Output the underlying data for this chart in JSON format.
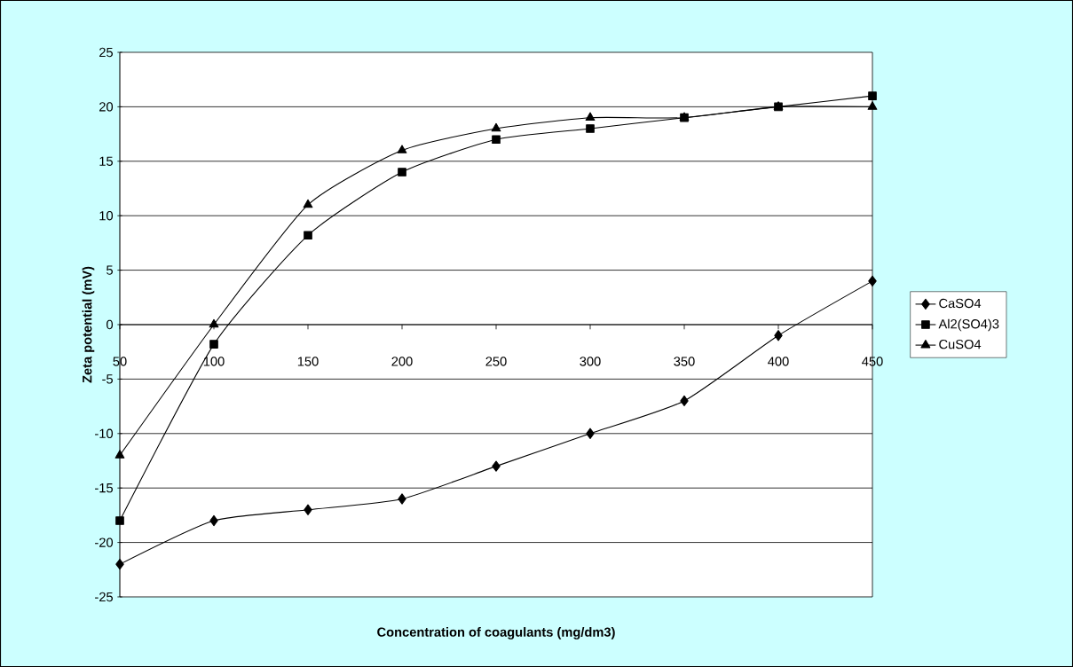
{
  "chart_data": {
    "type": "line",
    "xlabel": "Concentration of coagulants (mg/dm3)",
    "ylabel": "Zeta potential (mV)",
    "x": [
      50,
      100,
      150,
      200,
      250,
      300,
      350,
      400,
      450
    ],
    "series": [
      {
        "name": "CaSO4",
        "color": "#000000",
        "marker": "diamond",
        "values": [
          -22,
          -18,
          -17,
          -16,
          -13,
          -10,
          -7,
          -1,
          4
        ]
      },
      {
        "name": "Al2(SO4)3",
        "color": "#000000",
        "marker": "square",
        "values": [
          -18,
          -1.8,
          8.2,
          14,
          17,
          18,
          19,
          20,
          21
        ]
      },
      {
        "name": "CuSO4",
        "color": "#000000",
        "marker": "triangle",
        "values": [
          -12,
          0,
          11,
          16,
          18,
          19,
          19,
          20,
          20
        ]
      }
    ],
    "xlim": [
      50,
      450
    ],
    "xticks": [
      50,
      100,
      150,
      200,
      250,
      300,
      350,
      400,
      450
    ],
    "ylim": [
      -25,
      25
    ],
    "yticks": [
      -25,
      -20,
      -15,
      -10,
      -5,
      0,
      5,
      10,
      15,
      20,
      25
    ],
    "grid": "y",
    "legend": "right",
    "line_style": "solid"
  }
}
